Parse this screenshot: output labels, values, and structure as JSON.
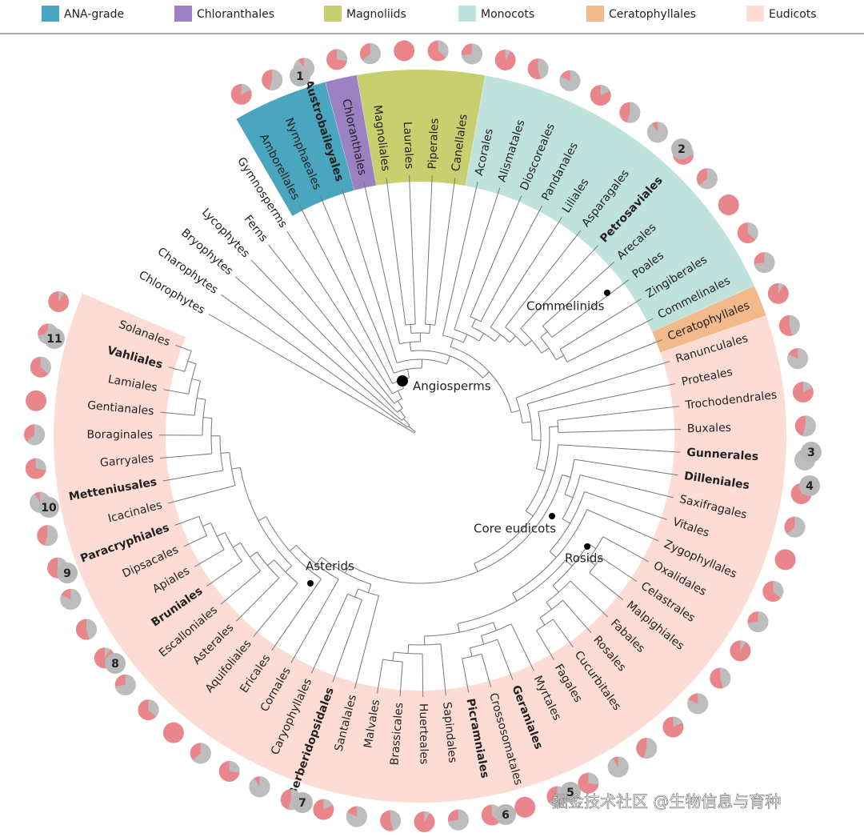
{
  "legend": [
    {
      "label": "ANA-grade",
      "color": "#4aa6be"
    },
    {
      "label": "Chloranthales",
      "color": "#9b80c2"
    },
    {
      "label": "Magnoliids",
      "color": "#c8cf6e"
    },
    {
      "label": "Monocots",
      "color": "#bfe2dc"
    },
    {
      "label": "Ceratophyllales",
      "color": "#f2b98a"
    },
    {
      "label": "Eudicots",
      "color": "#fcdcd4"
    }
  ],
  "leaves": [
    {
      "label": "Chlorophytes"
    },
    {
      "label": "Charophytes"
    },
    {
      "label": "Bryophytes"
    },
    {
      "label": "Lycophytes"
    },
    {
      "label": "Ferns"
    },
    {
      "label": "Gymnosperms"
    },
    {
      "label": "Amborellales"
    },
    {
      "label": "Nymphaeales"
    },
    {
      "label": "Austrobaileyales",
      "bold": true
    },
    {
      "label": "Chloranthales"
    },
    {
      "label": "Magnoliales"
    },
    {
      "label": "Laurales"
    },
    {
      "label": "Piperales"
    },
    {
      "label": "Canellales"
    },
    {
      "label": "Acorales"
    },
    {
      "label": "Alismatales"
    },
    {
      "label": "Dioscoreales"
    },
    {
      "label": "Pandanales"
    },
    {
      "label": "Liliales"
    },
    {
      "label": "Asparagales"
    },
    {
      "label": "Petrosaviales",
      "bold": true
    },
    {
      "label": "Arecales"
    },
    {
      "label": "Poales"
    },
    {
      "label": "Zingiberales"
    },
    {
      "label": "Commelinales"
    },
    {
      "label": "Ceratophyllales"
    },
    {
      "label": "Ranunculales"
    },
    {
      "label": "Proteales"
    },
    {
      "label": "Trochodendrales"
    },
    {
      "label": "Buxales"
    },
    {
      "label": "Gunnerales",
      "bold": true
    },
    {
      "label": "Dilleniales",
      "bold": true
    },
    {
      "label": "Saxifragales"
    },
    {
      "label": "Vitales"
    },
    {
      "label": "Zygophyllales"
    },
    {
      "label": "Oxalidales"
    },
    {
      "label": "Celastrales"
    },
    {
      "label": "Malpighiales"
    },
    {
      "label": "Fabales"
    },
    {
      "label": "Rosales"
    },
    {
      "label": "Cucurbitales"
    },
    {
      "label": "Fagales"
    },
    {
      "label": "Myrtales"
    },
    {
      "label": "Geraniales",
      "bold": true
    },
    {
      "label": "Crossosomatales"
    },
    {
      "label": "Picramniales",
      "bold": true
    },
    {
      "label": "Sapindales"
    },
    {
      "label": "Huerteales"
    },
    {
      "label": "Brassicales"
    },
    {
      "label": "Malvales"
    },
    {
      "label": "Santalales"
    },
    {
      "label": "Berberidopsidales",
      "bold": true
    },
    {
      "label": "Caryophyllales"
    },
    {
      "label": "Cornales"
    },
    {
      "label": "Ericales"
    },
    {
      "label": "Aquifoliales"
    },
    {
      "label": "Asterales"
    },
    {
      "label": "Escalloniales"
    },
    {
      "label": "Bruniales",
      "bold": true
    },
    {
      "label": "Apiales"
    },
    {
      "label": "Dipsacales"
    },
    {
      "label": "Paracryphiales",
      "bold": true
    },
    {
      "label": "Icacinales"
    },
    {
      "label": "Metteniusales",
      "bold": true
    },
    {
      "label": "Garryales"
    },
    {
      "label": "Boraginales"
    },
    {
      "label": "Gentianales"
    },
    {
      "label": "Lamiales"
    },
    {
      "label": "Vahliales",
      "bold": true
    },
    {
      "label": "Solanales"
    }
  ],
  "nodes": [
    "Angiosperms",
    "Commelinids",
    "Core eudicots",
    "Rosids",
    "Asterids"
  ],
  "badges": [
    "1",
    "2",
    "3",
    "4",
    "5",
    "6",
    "7",
    "8",
    "9",
    "10",
    "11"
  ],
  "watermark": "掘金技术社区 @生物信息与育种"
}
